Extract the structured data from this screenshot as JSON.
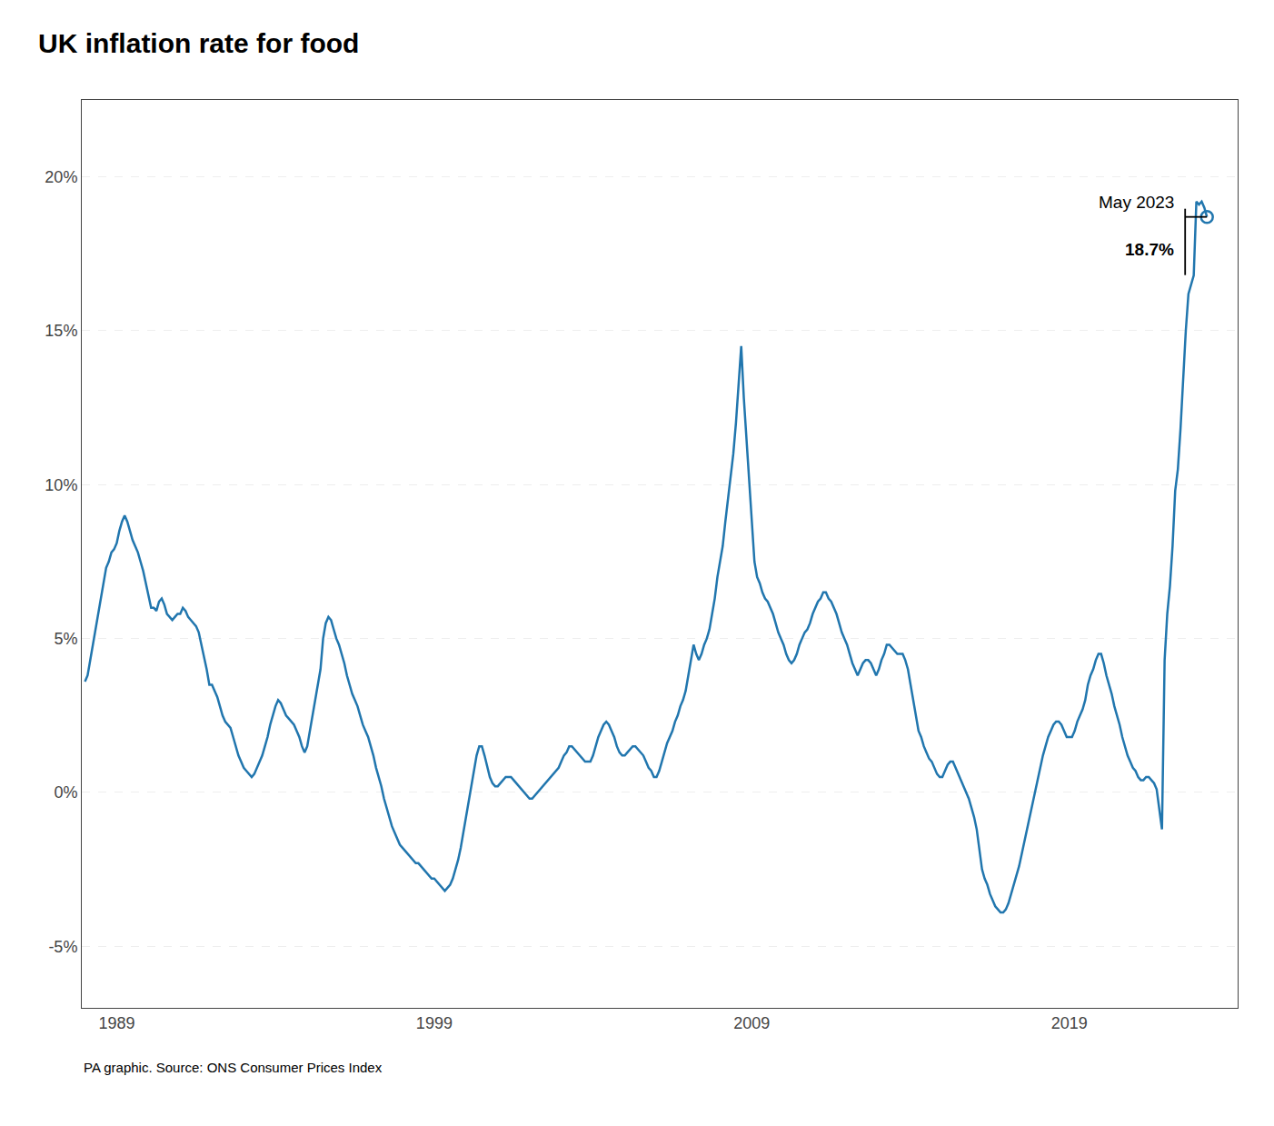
{
  "chart_data": {
    "type": "line",
    "title": "UK inflation rate for food",
    "source": "PA graphic. Source: ONS Consumer Prices Index",
    "annotations": [
      {
        "text": "May 2023"
      },
      {
        "text": "18.7%"
      }
    ],
    "color": "#2176ae",
    "marker": "open circle",
    "grid": true,
    "xlim": [
      1987.9,
      2024.3
    ],
    "xticks": [
      1989,
      1999,
      2009,
      2019
    ],
    "ylim": [
      -7.0,
      22.5
    ],
    "yticks": [
      {
        "value": -5,
        "label": "-5%"
      },
      {
        "value": 0,
        "label": "0%"
      },
      {
        "value": 5,
        "label": "5%"
      },
      {
        "value": 10,
        "label": "10%"
      },
      {
        "value": 15,
        "label": "15%"
      },
      {
        "value": 20,
        "label": "20%"
      }
    ],
    "x": [
      1988,
      1988.083,
      1988.167,
      1988.25,
      1988.333,
      1988.417,
      1988.5,
      1988.583,
      1988.667,
      1988.75,
      1988.833,
      1988.917,
      1989,
      1989.083,
      1989.167,
      1989.25,
      1989.333,
      1989.417,
      1989.5,
      1989.583,
      1989.667,
      1989.75,
      1989.833,
      1989.917,
      1990,
      1990.083,
      1990.167,
      1990.25,
      1990.333,
      1990.417,
      1990.5,
      1990.583,
      1990.667,
      1990.75,
      1990.833,
      1990.917,
      1991,
      1991.083,
      1991.167,
      1991.25,
      1991.333,
      1991.417,
      1991.5,
      1991.583,
      1991.667,
      1991.75,
      1991.833,
      1991.917,
      1992,
      1992.083,
      1992.167,
      1992.25,
      1992.333,
      1992.417,
      1992.5,
      1992.583,
      1992.667,
      1992.75,
      1992.833,
      1992.917,
      1993,
      1993.083,
      1993.167,
      1993.25,
      1993.333,
      1993.417,
      1993.5,
      1993.583,
      1993.667,
      1993.75,
      1993.833,
      1993.917,
      1994,
      1994.083,
      1994.167,
      1994.25,
      1994.333,
      1994.417,
      1994.5,
      1994.583,
      1994.667,
      1994.75,
      1994.833,
      1994.917,
      1995,
      1995.083,
      1995.167,
      1995.25,
      1995.333,
      1995.417,
      1995.5,
      1995.583,
      1995.667,
      1995.75,
      1995.833,
      1995.917,
      1996,
      1996.083,
      1996.167,
      1996.25,
      1996.333,
      1996.417,
      1996.5,
      1996.583,
      1996.667,
      1996.75,
      1996.833,
      1996.917,
      1997,
      1997.083,
      1997.167,
      1997.25,
      1997.333,
      1997.417,
      1997.5,
      1997.583,
      1997.667,
      1997.75,
      1997.833,
      1997.917,
      1998,
      1998.083,
      1998.167,
      1998.25,
      1998.333,
      1998.417,
      1998.5,
      1998.583,
      1998.667,
      1998.75,
      1998.833,
      1998.917,
      1999,
      1999.083,
      1999.167,
      1999.25,
      1999.333,
      1999.417,
      1999.5,
      1999.583,
      1999.667,
      1999.75,
      1999.833,
      1999.917,
      2000,
      2000.083,
      2000.167,
      2000.25,
      2000.333,
      2000.417,
      2000.5,
      2000.583,
      2000.667,
      2000.75,
      2000.833,
      2000.917,
      2001,
      2001.083,
      2001.167,
      2001.25,
      2001.333,
      2001.417,
      2001.5,
      2001.583,
      2001.667,
      2001.75,
      2001.833,
      2001.917,
      2002,
      2002.083,
      2002.167,
      2002.25,
      2002.333,
      2002.417,
      2002.5,
      2002.583,
      2002.667,
      2002.75,
      2002.833,
      2002.917,
      2003,
      2003.083,
      2003.167,
      2003.25,
      2003.333,
      2003.417,
      2003.5,
      2003.583,
      2003.667,
      2003.75,
      2003.833,
      2003.917,
      2004,
      2004.083,
      2004.167,
      2004.25,
      2004.333,
      2004.417,
      2004.5,
      2004.583,
      2004.667,
      2004.75,
      2004.833,
      2004.917,
      2005,
      2005.083,
      2005.167,
      2005.25,
      2005.333,
      2005.417,
      2005.5,
      2005.583,
      2005.667,
      2005.75,
      2005.833,
      2005.917,
      2006,
      2006.083,
      2006.167,
      2006.25,
      2006.333,
      2006.417,
      2006.5,
      2006.583,
      2006.667,
      2006.75,
      2006.833,
      2006.917,
      2007,
      2007.083,
      2007.167,
      2007.25,
      2007.333,
      2007.417,
      2007.5,
      2007.583,
      2007.667,
      2007.75,
      2007.833,
      2007.917,
      2008,
      2008.083,
      2008.167,
      2008.25,
      2008.333,
      2008.417,
      2008.5,
      2008.583,
      2008.667,
      2008.75,
      2008.833,
      2008.917,
      2009,
      2009.083,
      2009.167,
      2009.25,
      2009.333,
      2009.417,
      2009.5,
      2009.583,
      2009.667,
      2009.75,
      2009.833,
      2009.917,
      2010,
      2010.083,
      2010.167,
      2010.25,
      2010.333,
      2010.417,
      2010.5,
      2010.583,
      2010.667,
      2010.75,
      2010.833,
      2010.917,
      2011,
      2011.083,
      2011.167,
      2011.25,
      2011.333,
      2011.417,
      2011.5,
      2011.583,
      2011.667,
      2011.75,
      2011.833,
      2011.917,
      2012,
      2012.083,
      2012.167,
      2012.25,
      2012.333,
      2012.417,
      2012.5,
      2012.583,
      2012.667,
      2012.75,
      2012.833,
      2012.917,
      2013,
      2013.083,
      2013.167,
      2013.25,
      2013.333,
      2013.417,
      2013.5,
      2013.583,
      2013.667,
      2013.75,
      2013.833,
      2013.917,
      2014,
      2014.083,
      2014.167,
      2014.25,
      2014.333,
      2014.417,
      2014.5,
      2014.583,
      2014.667,
      2014.75,
      2014.833,
      2014.917,
      2015,
      2015.083,
      2015.167,
      2015.25,
      2015.333,
      2015.417,
      2015.5,
      2015.583,
      2015.667,
      2015.75,
      2015.833,
      2015.917,
      2016,
      2016.083,
      2016.167,
      2016.25,
      2016.333,
      2016.417,
      2016.5,
      2016.583,
      2016.667,
      2016.75,
      2016.833,
      2016.917,
      2017,
      2017.083,
      2017.167,
      2017.25,
      2017.333,
      2017.417,
      2017.5,
      2017.583,
      2017.667,
      2017.75,
      2017.833,
      2017.917,
      2018,
      2018.083,
      2018.167,
      2018.25,
      2018.333,
      2018.417,
      2018.5,
      2018.583,
      2018.667,
      2018.75,
      2018.833,
      2018.917,
      2019,
      2019.083,
      2019.167,
      2019.25,
      2019.333,
      2019.417,
      2019.5,
      2019.583,
      2019.667,
      2019.75,
      2019.833,
      2019.917,
      2020,
      2020.083,
      2020.167,
      2020.25,
      2020.333,
      2020.417,
      2020.5,
      2020.583,
      2020.667,
      2020.75,
      2020.833,
      2020.917,
      2021,
      2021.083,
      2021.167,
      2021.25,
      2021.333,
      2021.417,
      2021.5,
      2021.583,
      2021.667,
      2021.75,
      2021.833,
      2021.917,
      2022,
      2022.083,
      2022.167,
      2022.25,
      2022.333,
      2022.417,
      2022.5,
      2022.583,
      2022.667,
      2022.75,
      2022.833,
      2022.917,
      2023,
      2023.083,
      2023.167,
      2023.25,
      2023.333
    ],
    "values": [
      3.6,
      3.8,
      4.3,
      4.8,
      5.3,
      5.8,
      6.3,
      6.8,
      7.3,
      7.5,
      7.8,
      7.9,
      8.1,
      8.5,
      8.8,
      9.0,
      8.8,
      8.5,
      8.2,
      8.0,
      7.8,
      7.5,
      7.2,
      6.8,
      6.4,
      6.0,
      6.0,
      5.9,
      6.2,
      6.3,
      6.1,
      5.8,
      5.7,
      5.6,
      5.7,
      5.8,
      5.8,
      6.0,
      5.9,
      5.7,
      5.6,
      5.5,
      5.4,
      5.2,
      4.8,
      4.4,
      4.0,
      3.5,
      3.5,
      3.3,
      3.1,
      2.8,
      2.5,
      2.3,
      2.2,
      2.1,
      1.8,
      1.5,
      1.2,
      1.0,
      0.8,
      0.7,
      0.6,
      0.5,
      0.6,
      0.8,
      1.0,
      1.2,
      1.5,
      1.8,
      2.2,
      2.5,
      2.8,
      3.0,
      2.9,
      2.7,
      2.5,
      2.4,
      2.3,
      2.2,
      2.0,
      1.8,
      1.5,
      1.3,
      1.5,
      2.0,
      2.5,
      3.0,
      3.5,
      4.0,
      5.0,
      5.5,
      5.7,
      5.6,
      5.3,
      5.0,
      4.8,
      4.5,
      4.2,
      3.8,
      3.5,
      3.2,
      3.0,
      2.8,
      2.5,
      2.2,
      2.0,
      1.8,
      1.5,
      1.2,
      0.8,
      0.5,
      0.2,
      -0.2,
      -0.5,
      -0.8,
      -1.1,
      -1.3,
      -1.5,
      -1.7,
      -1.8,
      -1.9,
      -2.0,
      -2.1,
      -2.2,
      -2.3,
      -2.3,
      -2.4,
      -2.5,
      -2.6,
      -2.7,
      -2.8,
      -2.8,
      -2.9,
      -3.0,
      -3.1,
      -3.2,
      -3.1,
      -3.0,
      -2.8,
      -2.5,
      -2.2,
      -1.8,
      -1.3,
      -0.8,
      -0.2,
      0.3,
      0.8,
      1.2,
      1.5,
      1.5,
      1.2,
      0.8,
      0.5,
      0.3,
      0.2,
      0.2,
      0.3,
      0.4,
      0.5,
      0.5,
      0.5,
      0.4,
      0.3,
      0.2,
      0.1,
      0.0,
      -0.1,
      -0.2,
      -0.2,
      -0.1,
      0.0,
      0.1,
      0.2,
      0.3,
      0.4,
      0.5,
      0.6,
      0.7,
      0.8,
      1.0,
      1.2,
      1.3,
      1.5,
      1.5,
      1.4,
      1.3,
      1.2,
      1.1,
      1.0,
      1.0,
      1.0,
      1.2,
      1.5,
      1.8,
      2.0,
      2.2,
      2.3,
      2.2,
      2.0,
      1.8,
      1.5,
      1.3,
      1.2,
      1.2,
      1.3,
      1.4,
      1.5,
      1.5,
      1.4,
      1.3,
      1.2,
      1.0,
      0.8,
      0.7,
      0.5,
      0.5,
      0.7,
      1.0,
      1.3,
      1.6,
      1.8,
      2.0,
      2.3,
      2.5,
      2.8,
      3.0,
      3.3,
      3.8,
      4.3,
      4.8,
      4.5,
      4.3,
      4.5,
      4.8,
      5.0,
      5.3,
      5.8,
      6.3,
      7.0,
      7.5,
      8.0,
      8.8,
      9.5,
      10.2,
      11.0,
      12.0,
      13.2,
      14.5,
      12.8,
      11.5,
      10.2,
      9.0,
      7.5,
      7.0,
      6.8,
      6.5,
      6.3,
      6.2,
      6.0,
      5.8,
      5.5,
      5.2,
      5.0,
      4.8,
      4.5,
      4.3,
      4.2,
      4.3,
      4.5,
      4.8,
      5.0,
      5.2,
      5.3,
      5.5,
      5.8,
      6.0,
      6.2,
      6.3,
      6.5,
      6.5,
      6.3,
      6.2,
      6.0,
      5.8,
      5.5,
      5.2,
      5.0,
      4.8,
      4.5,
      4.2,
      4.0,
      3.8,
      4.0,
      4.2,
      4.3,
      4.3,
      4.2,
      4.0,
      3.8,
      4.0,
      4.3,
      4.5,
      4.8,
      4.8,
      4.7,
      4.6,
      4.5,
      4.5,
      4.5,
      4.3,
      4.0,
      3.5,
      3.0,
      2.5,
      2.0,
      1.8,
      1.5,
      1.3,
      1.1,
      1.0,
      0.8,
      0.6,
      0.5,
      0.5,
      0.7,
      0.9,
      1.0,
      1.0,
      0.8,
      0.6,
      0.4,
      0.2,
      0.0,
      -0.2,
      -0.5,
      -0.8,
      -1.2,
      -1.8,
      -2.5,
      -2.8,
      -3.0,
      -3.3,
      -3.5,
      -3.7,
      -3.8,
      -3.9,
      -3.9,
      -3.8,
      -3.6,
      -3.3,
      -3.0,
      -2.7,
      -2.4,
      -2.0,
      -1.6,
      -1.2,
      -0.8,
      -0.4,
      0.0,
      0.4,
      0.8,
      1.2,
      1.5,
      1.8,
      2.0,
      2.2,
      2.3,
      2.3,
      2.2,
      2.0,
      1.8,
      1.8,
      1.8,
      2.0,
      2.3,
      2.5,
      2.7,
      3.0,
      3.5,
      3.8,
      4.0,
      4.3,
      4.5,
      4.5,
      4.2,
      3.8,
      3.5,
      3.2,
      2.8,
      2.5,
      2.2,
      1.8,
      1.5,
      1.2,
      1.0,
      0.8,
      0.7,
      0.5,
      0.4,
      0.4,
      0.5,
      0.5,
      0.4,
      0.3,
      0.1,
      -0.5,
      -1.2,
      4.3,
      5.8,
      6.7,
      8.0,
      9.8,
      10.5,
      11.8,
      13.5,
      15.0,
      16.2,
      16.5,
      16.8,
      19.2,
      19.1,
      19.2,
      19.0,
      18.7
    ]
  }
}
